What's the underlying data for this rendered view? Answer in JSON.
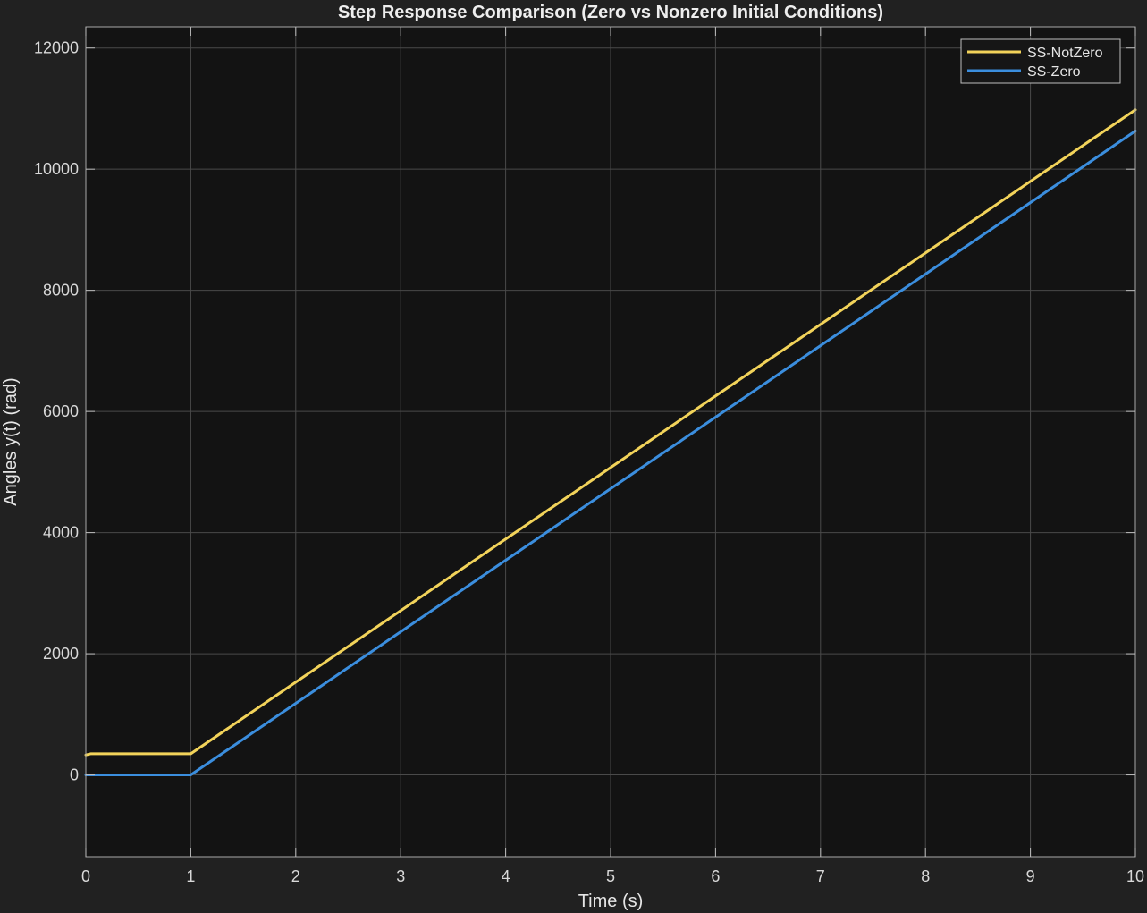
{
  "chart_data": {
    "type": "line",
    "title": "Step Response Comparison (Zero vs Nonzero Initial Conditions)",
    "xlabel": "Time (s)",
    "ylabel": "Angles y(t) (rad)",
    "xlim": [
      0,
      10
    ],
    "ylim": [
      -1350,
      12350
    ],
    "xticks": [
      0,
      1,
      2,
      3,
      4,
      5,
      6,
      7,
      8,
      9,
      10
    ],
    "yticks": [
      0,
      2000,
      4000,
      6000,
      8000,
      10000,
      12000
    ],
    "grid": true,
    "legend_position": "top-right",
    "background_color": "#131313",
    "figure_color": "#212121",
    "series": [
      {
        "name": "SS-NotZero",
        "color": "#f2d35a",
        "x": [
          0,
          0.05,
          1,
          10
        ],
        "y": [
          330,
          350,
          350,
          10980
        ]
      },
      {
        "name": "SS-Zero",
        "color": "#3b8ede",
        "x": [
          0,
          1,
          10
        ],
        "y": [
          0,
          0,
          10630
        ]
      }
    ]
  }
}
